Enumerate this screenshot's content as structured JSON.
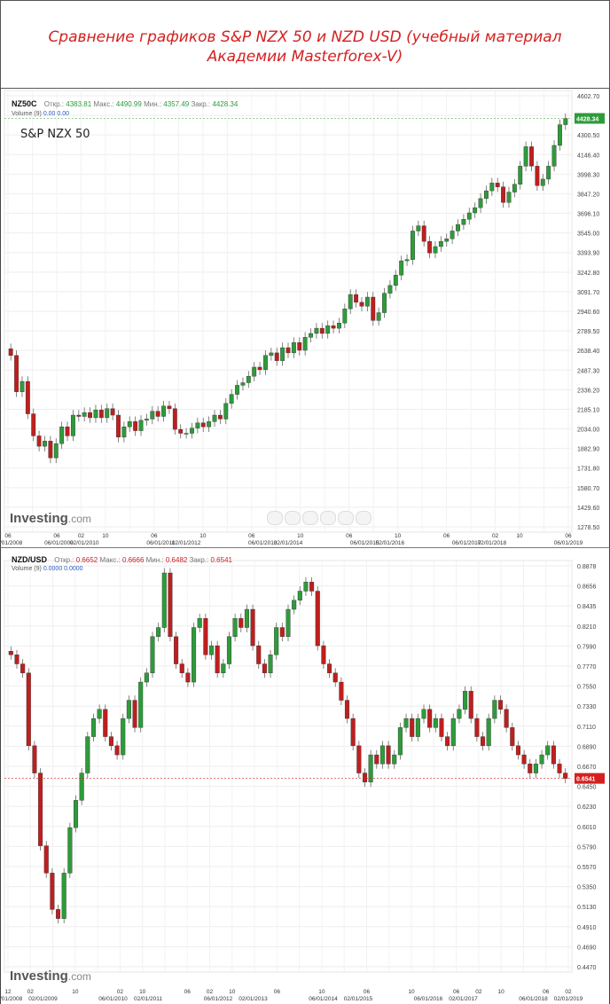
{
  "header": {
    "title": "Сравнение графиков S&P NZX 50 и NZD USD (учебный материал Академии Masterforex-V)"
  },
  "nz50": {
    "ticker": "NZ50C",
    "open_label": "Откр.:",
    "open": "4383.81",
    "max_label": "Макс.:",
    "max": "4490.99",
    "min_label": "Мин.:",
    "min": "4357.49",
    "close_label": "Закр.:",
    "close": "4428.34",
    "volume_label": "Volume (9)",
    "volume_values": "0.00   0.00",
    "big_label": "S&P NZX 50",
    "last_price": "4428.34",
    "logo": "Investing",
    "logo_suffix": ".com"
  },
  "nzdusd": {
    "ticker": "NZD/USD",
    "open_label": "Откр.:",
    "open": "0.6652",
    "max_label": "Макс.:",
    "max": "0.6666",
    "min_label": "Мин.:",
    "min": "0.6482",
    "close_label": "Закр.:",
    "close": "0.6541",
    "volume_label": "Volume (9)",
    "volume_values": "0.0000   0.0000",
    "last_price": "0.6541",
    "logo": "Investing",
    "logo_suffix": ".com"
  },
  "colors": {
    "up": "#2e9b3a",
    "down": "#c01e1e",
    "title": "#d42020",
    "grid": "#eeeeee"
  },
  "chart_data": [
    {
      "type": "candlestick",
      "title": "S&P NZX 50",
      "ylim": [
        1278.5,
        4602.7
      ],
      "yticks": [
        "4602.70",
        "4450.50",
        "4300.50",
        "4146.40",
        "3998.30",
        "3847.20",
        "3696.10",
        "3545.00",
        "3393.90",
        "3242.80",
        "3091.70",
        "2940.60",
        "2789.50",
        "2638.40",
        "2487.30",
        "2336.20",
        "2185.10",
        "2034.00",
        "1882.90",
        "1731.80",
        "1580.70",
        "1429.60",
        "1278.50"
      ],
      "x_top": [
        "06",
        "",
        "06",
        "02",
        "10",
        "",
        "06",
        "",
        "10",
        "",
        "06",
        "",
        "10",
        "",
        "06",
        "",
        "10",
        "",
        "06",
        "",
        "02",
        "10",
        "",
        "06"
      ],
      "x_bottom": [
        "06/01/2008",
        "",
        "06/01/2009",
        "02/01/2010",
        "",
        "",
        "06/01/2011",
        "02/01/2012",
        "",
        "",
        "06/01/2013",
        "02/01/2014",
        "",
        "",
        "06/01/2015",
        "02/01/2016",
        "",
        "",
        "06/01/2017",
        "02/01/2018",
        "",
        "",
        "06/01/2019"
      ],
      "closes": [
        2600,
        2320,
        2400,
        2150,
        1980,
        1900,
        1940,
        1810,
        1920,
        2050,
        1980,
        2140,
        2130,
        2160,
        2120,
        2180,
        2120,
        2190,
        2140,
        1970,
        2050,
        2090,
        2020,
        2100,
        2110,
        2170,
        2130,
        2210,
        2190,
        2030,
        2000,
        2000,
        2040,
        2080,
        2050,
        2090,
        2140,
        2110,
        2230,
        2300,
        2370,
        2390,
        2440,
        2510,
        2490,
        2600,
        2620,
        2560,
        2660,
        2620,
        2700,
        2640,
        2740,
        2770,
        2810,
        2770,
        2830,
        2810,
        2850,
        2960,
        3070,
        3010,
        2980,
        3050,
        2870,
        2930,
        3080,
        3140,
        3220,
        3330,
        3340,
        3560,
        3600,
        3480,
        3390,
        3440,
        3480,
        3500,
        3560,
        3610,
        3650,
        3700,
        3740,
        3810,
        3870,
        3930,
        3900,
        3780,
        3860,
        3920,
        4060,
        4210,
        4060,
        3910,
        3960,
        4060,
        4220,
        4380,
        4428
      ],
      "ylabel": "",
      "xlabel": ""
    },
    {
      "type": "candlestick",
      "title": "NZD/USD",
      "ylim": [
        0.447,
        0.8878
      ],
      "yticks": [
        "0.8878",
        "0.8656",
        "0.8435",
        "0.8210",
        "0.7990",
        "0.7770",
        "0.7550",
        "0.7330",
        "0.7110",
        "0.6890",
        "0.6670",
        "0.6450",
        "0.6230",
        "0.6010",
        "0.5790",
        "0.5570",
        "0.5350",
        "0.5130",
        "0.4910",
        "0.4690",
        "0.4470"
      ],
      "x_top": [
        "12",
        "02",
        "",
        "10",
        "",
        "02",
        "10",
        "",
        "06",
        "02",
        "10",
        "",
        "06",
        "",
        "10",
        "",
        "06",
        "",
        "10",
        "",
        "06",
        "02",
        "10",
        "",
        "06",
        "02"
      ],
      "x_bottom": [
        "12/01/2008",
        "02/01/2009",
        "",
        "06/01/2010",
        "02/01/2011",
        "",
        "06/01/2012",
        "02/01/2013",
        "",
        "06/01/2014",
        "02/01/2015",
        "",
        "06/01/2016",
        "02/01/2017",
        "",
        "06/01/2018",
        "02/01/2019"
      ],
      "closes": [
        0.79,
        0.78,
        0.77,
        0.69,
        0.66,
        0.58,
        0.55,
        0.51,
        0.5,
        0.55,
        0.6,
        0.63,
        0.66,
        0.7,
        0.72,
        0.73,
        0.7,
        0.69,
        0.68,
        0.72,
        0.74,
        0.71,
        0.76,
        0.77,
        0.81,
        0.82,
        0.88,
        0.81,
        0.78,
        0.77,
        0.76,
        0.82,
        0.83,
        0.79,
        0.8,
        0.77,
        0.78,
        0.81,
        0.83,
        0.82,
        0.84,
        0.8,
        0.78,
        0.77,
        0.79,
        0.82,
        0.81,
        0.84,
        0.85,
        0.86,
        0.87,
        0.86,
        0.8,
        0.78,
        0.77,
        0.76,
        0.74,
        0.72,
        0.69,
        0.66,
        0.65,
        0.68,
        0.67,
        0.69,
        0.67,
        0.68,
        0.71,
        0.72,
        0.7,
        0.72,
        0.73,
        0.71,
        0.72,
        0.7,
        0.69,
        0.72,
        0.73,
        0.75,
        0.72,
        0.7,
        0.69,
        0.72,
        0.74,
        0.73,
        0.71,
        0.69,
        0.68,
        0.67,
        0.66,
        0.67,
        0.68,
        0.69,
        0.67,
        0.66,
        0.654
      ]
    }
  ]
}
